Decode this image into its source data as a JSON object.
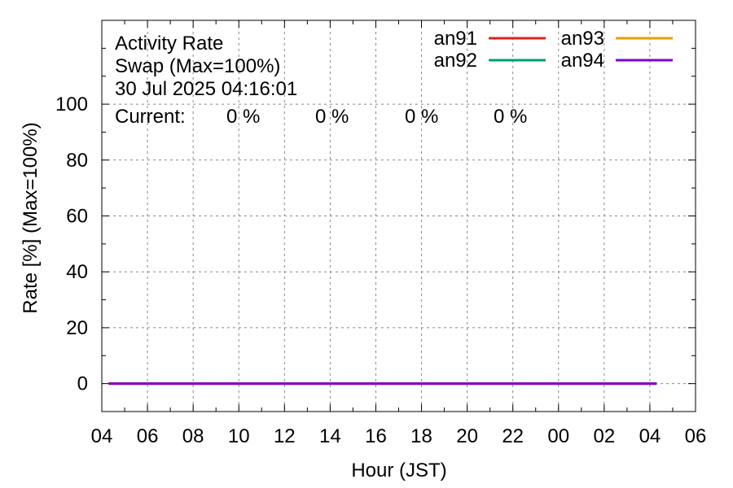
{
  "chart_data": {
    "type": "line",
    "title": "Activity Rate",
    "subtitle": "Swap (Max=100%)",
    "timestamp": "30 Jul 2025 04:16:01",
    "current_label": "Current:",
    "xlabel": "Hour (JST)",
    "ylabel": "Rate [%]  (Max=100%)",
    "x_ticks": [
      "04",
      "06",
      "08",
      "10",
      "12",
      "14",
      "16",
      "18",
      "20",
      "22",
      "00",
      "02",
      "04",
      "06"
    ],
    "y_ticks": [
      "0",
      "20",
      "40",
      "60",
      "80",
      "100"
    ],
    "xlim_hours": [
      0,
      26
    ],
    "ylim": [
      -10,
      130
    ],
    "grid": true,
    "legend_position": "top-right",
    "series": [
      {
        "name": "an91",
        "color": "#e0201b",
        "current": "0 %",
        "x_hours": [
          0.3,
          24.3
        ],
        "values": [
          0,
          0
        ]
      },
      {
        "name": "an92",
        "color": "#009e73",
        "current": "0 %",
        "x_hours": [
          0.3,
          24.3
        ],
        "values": [
          0,
          0
        ]
      },
      {
        "name": "an93",
        "color": "#e6a000",
        "current": "0 %",
        "x_hours": [
          0.3,
          24.3
        ],
        "values": [
          0,
          0
        ]
      },
      {
        "name": "an94",
        "color": "#8000c8",
        "current": "0 %",
        "x_hours": [
          0.3,
          24.3
        ],
        "values": [
          0,
          0
        ]
      }
    ]
  }
}
